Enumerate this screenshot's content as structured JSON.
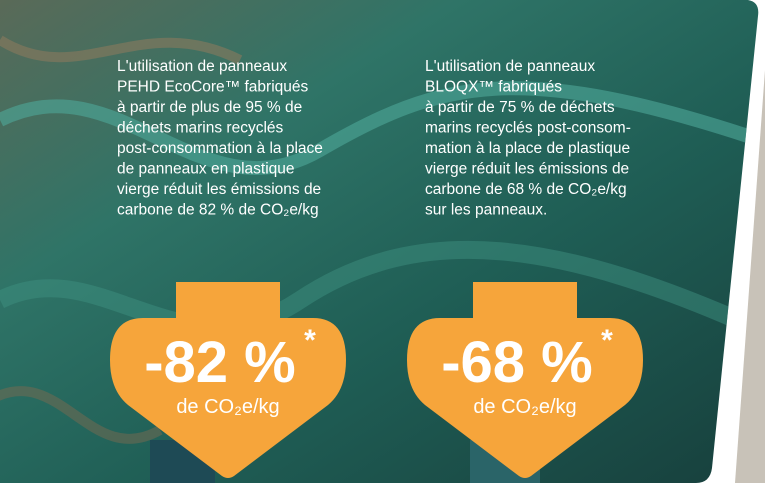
{
  "blocks": [
    {
      "lines": [
        "L'utilisation de panneaux",
        "PEHD EcoCore™ fabriqués",
        "à partir de plus de 95 % de",
        "déchets marins recyclés",
        "post-consommation à la place",
        "de panneaux en plastique",
        "vierge réduit les émissions de",
        "carbone de 82 % de CO₂e/kg"
      ],
      "badge": {
        "value": "-82 %",
        "note": "*",
        "unit": "de CO₂e/kg"
      }
    },
    {
      "lines": [
        "L'utilisation de panneaux",
        "BLOQX™ fabriqués",
        "à partir de 75 % de déchets",
        "marins recyclés post-consom-",
        "mation à la place de plastique",
        "vierge réduit les émissions de",
        "carbone de 68 % de CO₂e/kg",
        "sur les panneaux."
      ],
      "badge": {
        "value": "-68 %",
        "note": "*",
        "unit": "de CO₂e/kg"
      }
    }
  ]
}
